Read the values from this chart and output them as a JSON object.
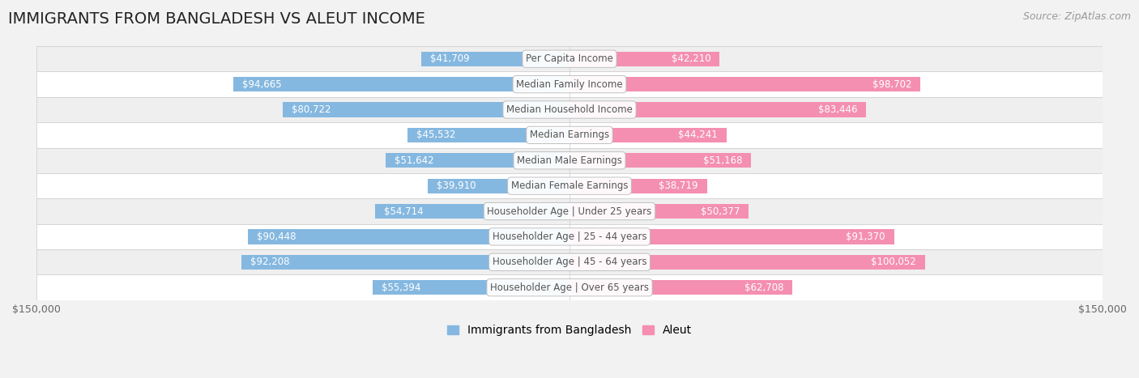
{
  "title": "IMMIGRANTS FROM BANGLADESH VS ALEUT INCOME",
  "source": "Source: ZipAtlas.com",
  "categories": [
    "Per Capita Income",
    "Median Family Income",
    "Median Household Income",
    "Median Earnings",
    "Median Male Earnings",
    "Median Female Earnings",
    "Householder Age | Under 25 years",
    "Householder Age | 25 - 44 years",
    "Householder Age | 45 - 64 years",
    "Householder Age | Over 65 years"
  ],
  "bangladesh_values": [
    41709,
    94665,
    80722,
    45532,
    51642,
    39910,
    54714,
    90448,
    92208,
    55394
  ],
  "aleut_values": [
    42210,
    98702,
    83446,
    44241,
    51168,
    38719,
    50377,
    91370,
    100052,
    62708
  ],
  "bangladesh_labels": [
    "$41,709",
    "$94,665",
    "$80,722",
    "$45,532",
    "$51,642",
    "$39,910",
    "$54,714",
    "$90,448",
    "$92,208",
    "$55,394"
  ],
  "aleut_labels": [
    "$42,210",
    "$98,702",
    "$83,446",
    "$44,241",
    "$51,168",
    "$38,719",
    "$50,377",
    "$91,370",
    "$100,052",
    "$62,708"
  ],
  "bangladesh_color": "#85b8e0",
  "aleut_color": "#f48fb1",
  "max_value": 150000,
  "bg_color": "#f2f2f2",
  "row_colors": [
    "#efefef",
    "#ffffff"
  ],
  "label_threshold": 18000,
  "title_fontsize": 14,
  "label_fontsize": 8.5,
  "axis_label_fontsize": 9,
  "legend_fontsize": 10,
  "source_fontsize": 9,
  "center_box_color": "white",
  "center_text_color": "#555555",
  "outside_label_color": "#555555",
  "inside_label_color": "white"
}
